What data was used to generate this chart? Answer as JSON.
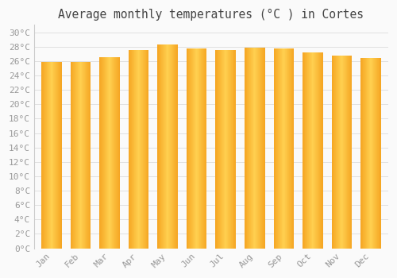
{
  "title": "Average monthly temperatures (°C ) in Cortes",
  "months": [
    "Jan",
    "Feb",
    "Mar",
    "Apr",
    "May",
    "Jun",
    "Jul",
    "Aug",
    "Sep",
    "Oct",
    "Nov",
    "Dec"
  ],
  "values": [
    25.9,
    25.9,
    26.5,
    27.5,
    28.3,
    27.7,
    27.5,
    27.8,
    27.7,
    27.2,
    26.8,
    26.4
  ],
  "bar_color": "#F5A623",
  "bar_edge_color": "#E8920A",
  "background_color": "#FAFAFA",
  "grid_color": "#E0E0E0",
  "ylim": [
    0,
    31
  ],
  "yticks": [
    0,
    2,
    4,
    6,
    8,
    10,
    12,
    14,
    16,
    18,
    20,
    22,
    24,
    26,
    28,
    30
  ],
  "title_fontsize": 10.5,
  "tick_fontsize": 8,
  "tick_color": "#999999",
  "title_color": "#444444",
  "font_family": "monospace",
  "bar_width": 0.7
}
